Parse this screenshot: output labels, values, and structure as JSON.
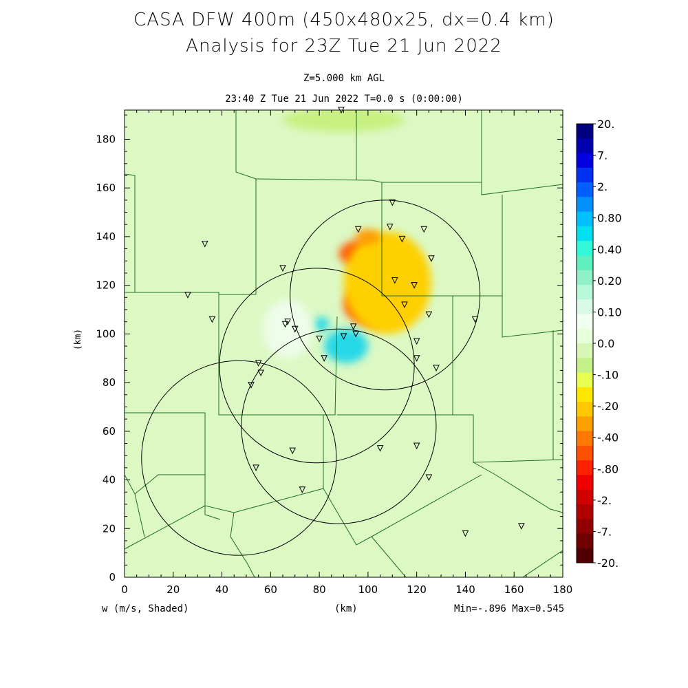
{
  "titles": {
    "line1": "CASA DFW 400m (450x480x25, dx=0.4 km)",
    "line2": "Analysis for 23Z Tue 21 Jun 2022",
    "sub1": "Z=5.000 km AGL",
    "sub2": "23:40 Z Tue 21 Jun 2022   T=0.0 s (0:00:00)"
  },
  "footer": {
    "left": "w (m/s, Shaded)",
    "center": "(km)",
    "right": "Min=-.896 Max=0.545"
  },
  "chart_data": {
    "type": "heatmap",
    "xlabel": "(km)",
    "ylabel": "(km)",
    "xlim": [
      0,
      180
    ],
    "ylim": [
      0,
      192
    ],
    "xticks": [
      0,
      20,
      40,
      60,
      80,
      100,
      120,
      140,
      160,
      180
    ],
    "yticks": [
      0,
      20,
      40,
      60,
      80,
      100,
      120,
      140,
      160,
      180
    ],
    "field": "w (m/s)",
    "min": -0.896,
    "max": 0.545,
    "colorbar": {
      "labels": [
        "20.",
        "7.",
        "2.",
        "0.80",
        "0.40",
        "0.20",
        "0.10",
        "0.0",
        "-.10",
        "-.20",
        "-.40",
        "-.80",
        "-2.",
        "-7.",
        "-20."
      ],
      "colors": [
        "#000080",
        "#0000b0",
        "#0000e0",
        "#0030f0",
        "#0060ff",
        "#0090ff",
        "#00c0ff",
        "#00e0f0",
        "#30f8d8",
        "#60f0c0",
        "#90f0c8",
        "#b8f8d8",
        "#d8fbe8",
        "#f0fff0",
        "#e8ffdc",
        "#d6f7b6",
        "#c4f08a",
        "#e8ff50",
        "#ffe800",
        "#ffc800",
        "#ffa000",
        "#ff7800",
        "#ff5000",
        "#ff2000",
        "#f00000",
        "#d00000",
        "#b00000",
        "#900000",
        "#700000",
        "#500000"
      ]
    },
    "radar_rings_km": [
      {
        "cx": 107,
        "cy": 116,
        "r": 39
      },
      {
        "cx": 79,
        "cy": 87,
        "r": 40
      },
      {
        "cx": 88,
        "cy": 62,
        "r": 40
      },
      {
        "cx": 47,
        "cy": 49,
        "r": 40
      }
    ],
    "stations_km": [
      [
        89,
        192
      ],
      [
        110,
        154
      ],
      [
        96,
        143
      ],
      [
        109,
        144
      ],
      [
        114,
        139
      ],
      [
        123,
        143
      ],
      [
        33,
        137
      ],
      [
        65,
        127
      ],
      [
        126,
        131
      ],
      [
        111,
        122
      ],
      [
        119,
        120
      ],
      [
        26,
        116
      ],
      [
        115,
        112
      ],
      [
        36,
        106
      ],
      [
        125,
        108
      ],
      [
        144,
        106
      ],
      [
        67,
        105
      ],
      [
        66,
        104
      ],
      [
        70,
        102
      ],
      [
        94,
        103
      ],
      [
        95,
        100
      ],
      [
        90,
        99
      ],
      [
        80,
        98
      ],
      [
        120,
        97
      ],
      [
        82,
        90
      ],
      [
        120,
        90
      ],
      [
        128,
        86
      ],
      [
        55,
        88
      ],
      [
        56,
        84
      ],
      [
        52,
        79
      ],
      [
        69,
        52
      ],
      [
        105,
        53
      ],
      [
        120,
        54
      ],
      [
        54,
        45
      ],
      [
        125,
        41
      ],
      [
        73,
        36
      ],
      [
        140,
        18
      ],
      [
        163,
        21
      ]
    ],
    "field_blobs": [
      {
        "cx": 100,
        "cy": 133,
        "rx": 12,
        "ry": 6,
        "value": -0.8
      },
      {
        "cx": 103,
        "cy": 112,
        "rx": 13,
        "ry": 9,
        "value": -0.8
      },
      {
        "cx": 108,
        "cy": 121,
        "rx": 18,
        "ry": 21,
        "value": -0.2
      },
      {
        "cx": 100,
        "cy": 140,
        "rx": 5,
        "ry": 3,
        "value": -0.4
      },
      {
        "cx": 91,
        "cy": 95,
        "rx": 9,
        "ry": 7,
        "value": 0.2
      },
      {
        "cx": 81,
        "cy": 104,
        "rx": 3,
        "ry": 3,
        "value": 0.2
      },
      {
        "cx": 67,
        "cy": 102,
        "rx": 10,
        "ry": 12,
        "value": 0.05
      },
      {
        "cx": 90,
        "cy": 188,
        "rx": 25,
        "ry": 5,
        "value": -0.1
      }
    ]
  }
}
